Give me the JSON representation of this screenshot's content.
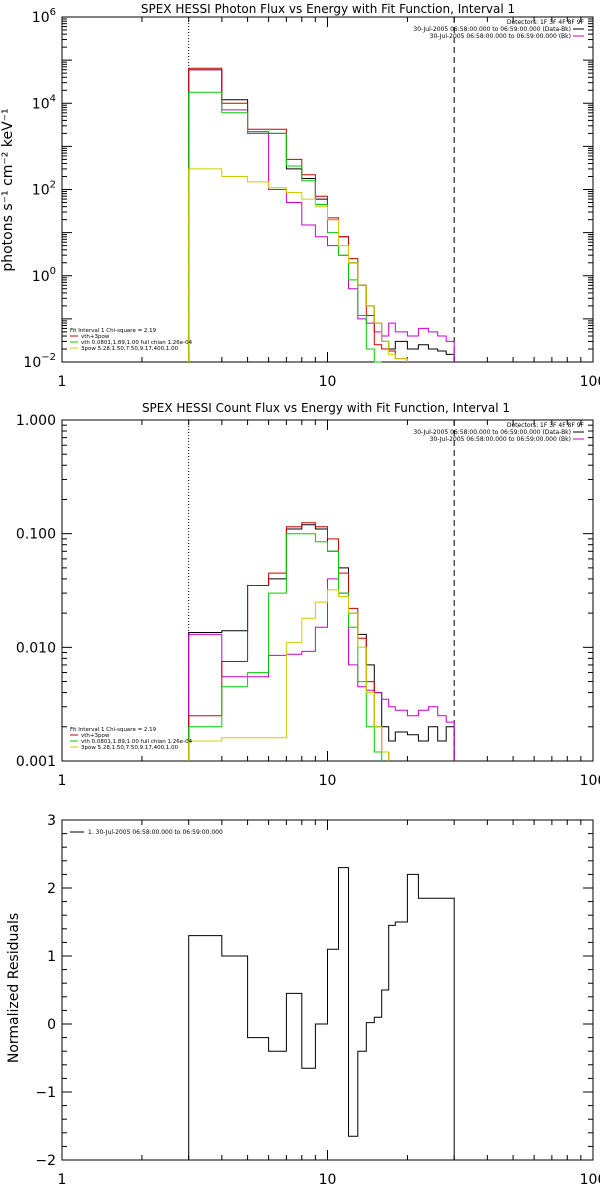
{
  "colors": {
    "background": "#ffffff",
    "axis": "#000000"
  },
  "detectors_label": "Detectors: 1F 3F 4F 8F 9F",
  "chart_data": [
    {
      "type": "line",
      "subtype": "step",
      "title": "SPEX HESSI Photon Flux vs Energy with Fit Function, Interval 1",
      "xlabel": "",
      "ylabel": "photons s⁻¹ cm⁻² keV⁻¹",
      "xscale": "log",
      "yscale": "log",
      "xlim": [
        1,
        100
      ],
      "ylim": [
        0.01,
        1000000
      ],
      "xtick_labels": [
        "1",
        "10",
        "100"
      ],
      "ytick_labels": [
        {
          "value": 0.01,
          "base": "10",
          "exp": "−2"
        },
        {
          "value": 1,
          "base": "10",
          "exp": "0"
        },
        {
          "value": 100,
          "base": "10",
          "exp": "2"
        },
        {
          "value": 10000,
          "base": "10",
          "exp": "4"
        },
        {
          "value": 1000000,
          "base": "10",
          "exp": "6"
        }
      ],
      "vlines": [
        {
          "x": 3,
          "style": "dotted"
        },
        {
          "x": 30,
          "style": "dashed"
        }
      ],
      "time_legend": [
        {
          "text": "30-Jul-2005 06:58:00.000 to 06:59:00.000 (Data-Bk)",
          "color": "#000000"
        },
        {
          "text": "30-Jul-2005 06:58:00.000 to 06:59:00.000 (Bk)",
          "color": "#cc00cc"
        }
      ],
      "fit_legend_header": "Fit Interval 1    Chi-square = 2.19",
      "fit_legend": [
        {
          "text": "vth+3pow",
          "color": "#cc0000"
        },
        {
          "text": "vth 0.0801,1.89,1.00  full chian 1.26e-04",
          "color": "#00cc00"
        },
        {
          "text": "3pow 5.28,1.50,7.50,9.17,400,1.00",
          "color": "#cccc00"
        }
      ],
      "edges": [
        3,
        4,
        5,
        6,
        7,
        8,
        9,
        10,
        11,
        12,
        13,
        14,
        15,
        16,
        17,
        18,
        20,
        22,
        24,
        26,
        28,
        30
      ],
      "series": [
        {
          "name": "Data-Bk",
          "color": "#000000",
          "values": [
            60000,
            12000,
            2200,
            2000,
            300,
            180,
            60,
            20,
            8,
            2,
            0.6,
            0.2,
            0.08,
            0.03,
            0.02,
            0.03,
            0.02,
            0.025,
            0.02,
            0.018,
            0.015
          ]
        },
        {
          "name": "Bk",
          "color": "#cc00cc",
          "values": [
            60000,
            7000,
            2000,
            100,
            50,
            15,
            8,
            5,
            3,
            0.5,
            0.1,
            0.08,
            0.05,
            0.04,
            0.08,
            0.05,
            0.04,
            0.06,
            0.05,
            0.04,
            0.03
          ]
        },
        {
          "name": "vth+3pow",
          "color": "#cc0000",
          "values": [
            65000,
            10000,
            2500,
            2500,
            500,
            220,
            70,
            22,
            8,
            2.5,
            0.6,
            0.12,
            0.025,
            0.02,
            0.018,
            0.012
          ]
        },
        {
          "name": "vth",
          "color": "#00cc00",
          "values": [
            18000,
            6000,
            2200,
            2000,
            350,
            160,
            45,
            10,
            3,
            0.8,
            0.12,
            0.02,
            0.01
          ]
        },
        {
          "name": "3pow",
          "color": "#cccc00",
          "values": [
            300,
            200,
            150,
            110,
            85,
            60,
            40,
            20,
            5,
            2,
            0.6,
            0.2,
            0.08,
            0.03,
            0.015,
            0.012
          ]
        }
      ]
    },
    {
      "type": "line",
      "subtype": "step",
      "title": "SPEX HESSI Count Flux vs Energy with Fit Function, Interval 1",
      "xlabel": "",
      "ylabel": "",
      "xscale": "log",
      "yscale": "log",
      "xlim": [
        1,
        100
      ],
      "ylim": [
        0.001,
        1.0
      ],
      "xtick_labels": [
        "1",
        "10",
        "100"
      ],
      "ytick_labels": [
        {
          "value": 0.001,
          "text": "0.001"
        },
        {
          "value": 0.01,
          "text": "0.010"
        },
        {
          "value": 0.1,
          "text": "0.100"
        },
        {
          "value": 1,
          "text": "1.000"
        }
      ],
      "vlines": [
        {
          "x": 3,
          "style": "dotted"
        },
        {
          "x": 30,
          "style": "dashed"
        }
      ],
      "time_legend": [
        {
          "text": "30-Jul-2005 06:58:00.000 to 06:59:00.000 (Data-Bk)",
          "color": "#000000"
        },
        {
          "text": "30-Jul-2005 06:58:00.000 to 06:59:00.000 (Bk)",
          "color": "#cc00cc"
        }
      ],
      "fit_legend_header": "Fit Interval 1    Chi-square = 2.19",
      "fit_legend": [
        {
          "text": "vth+3pow",
          "color": "#cc0000"
        },
        {
          "text": "vth 0.0801,1.89,1.00  full chian 1.26e-04",
          "color": "#00cc00"
        },
        {
          "text": "3pow 5.28,1.50,7.50,9.17,400,1.00",
          "color": "#cccc00"
        }
      ],
      "edges": [
        3,
        4,
        5,
        6,
        7,
        8,
        9,
        10,
        11,
        12,
        13,
        14,
        15,
        16,
        17,
        18,
        20,
        22,
        24,
        26,
        28,
        30
      ],
      "series": [
        {
          "name": "Data-Bk",
          "color": "#000000",
          "values": [
            0.0135,
            0.014,
            0.035,
            0.04,
            0.11,
            0.12,
            0.11,
            0.07,
            0.05,
            0.02,
            0.013,
            0.007,
            0.004,
            0.002,
            0.0015,
            0.0018,
            0.0017,
            0.0015,
            0.002,
            0.0015,
            0.002
          ]
        },
        {
          "name": "Bk",
          "color": "#cc00cc",
          "values": [
            0.013,
            0.0055,
            0.0055,
            0.0085,
            0.0087,
            0.0092,
            0.015,
            0.04,
            0.03,
            0.007,
            0.0045,
            0.0042,
            0.004,
            0.0035,
            0.003,
            0.0028,
            0.0025,
            0.0028,
            0.003,
            0.0025,
            0.0022
          ]
        },
        {
          "name": "vth+3pow",
          "color": "#cc0000",
          "values": [
            0.0025,
            0.0075,
            0.035,
            0.045,
            0.115,
            0.125,
            0.115,
            0.09,
            0.045,
            0.022,
            0.012,
            0.005,
            0.002,
            0.0012
          ]
        },
        {
          "name": "vth",
          "color": "#00cc00",
          "values": [
            0.002,
            0.0045,
            0.006,
            0.03,
            0.1,
            0.1,
            0.085,
            0.07,
            0.03,
            0.015,
            0.005,
            0.002,
            0.0012
          ]
        },
        {
          "name": "3pow",
          "color": "#cccc00",
          "values": [
            0.0015,
            0.0016,
            0.0016,
            0.0016,
            0.011,
            0.018,
            0.025,
            0.032,
            0.028,
            0.02,
            0.01,
            0.004,
            0.002,
            0.0012
          ]
        }
      ]
    },
    {
      "type": "line",
      "subtype": "step",
      "title": "",
      "xlabel": "",
      "ylabel": "Normalized Residuals",
      "xscale": "log",
      "yscale": "linear",
      "xlim": [
        1,
        100
      ],
      "ylim": [
        -2,
        3
      ],
      "xtick_labels": [
        "1",
        "10",
        "100"
      ],
      "ytick_labels": [
        {
          "value": -2,
          "text": "−2"
        },
        {
          "value": -1,
          "text": "−1"
        },
        {
          "value": 0,
          "text": "0"
        },
        {
          "value": 1,
          "text": "1"
        },
        {
          "value": 2,
          "text": "2"
        },
        {
          "value": 3,
          "text": "3"
        }
      ],
      "time_legend": [
        {
          "text": "1. 30-Jul-2005 06:58:00.000 to 06:59:00.000",
          "color": "#000000"
        }
      ],
      "edges": [
        3,
        4,
        5,
        6,
        7,
        8,
        9,
        10,
        11,
        12,
        13,
        14,
        15,
        16,
        17,
        18,
        20,
        22,
        24,
        26,
        28,
        30
      ],
      "series": [
        {
          "name": "1. 30-Jul-2005 06:58:00.000 to 06:59:00.000",
          "color": "#000000",
          "values": [
            1.3,
            1.0,
            -0.2,
            -0.4,
            0.45,
            -0.65,
            0.0,
            1.1,
            2.3,
            -1.65,
            -0.4,
            0.02,
            0.1,
            0.5,
            1.45,
            1.5,
            2.2,
            1.85,
            1.85,
            1.85,
            1.85
          ]
        }
      ]
    }
  ]
}
